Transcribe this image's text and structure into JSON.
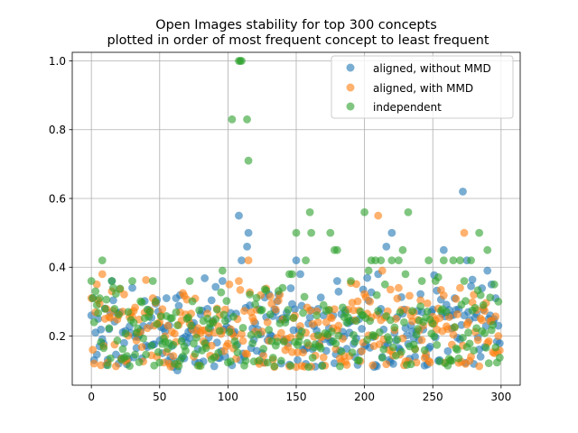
{
  "chart_data": {
    "type": "scatter",
    "title_line1": "Open Images stability for top 300 concepts",
    "title_line2": "plotted in order of most frequent concept to least frequent",
    "xlim": [
      -14,
      314
    ],
    "ylim": [
      0.057,
      1.025
    ],
    "x_ticks": [
      0,
      50,
      100,
      150,
      200,
      250,
      300
    ],
    "y_ticks": [
      0.2,
      0.4,
      0.6,
      0.8,
      1.0
    ],
    "y_tick_labels": [
      "0.2",
      "0.4",
      "0.6",
      "0.8",
      "1.0"
    ],
    "grid": true,
    "legend_position": "upper-right",
    "n_points": 300,
    "series": [
      {
        "name": "aligned, without MMD",
        "color": "#1f77b4",
        "seed": 11,
        "highlights": [
          [
            0,
            0.26
          ],
          [
            1,
            0.31
          ],
          [
            2,
            0.13
          ],
          [
            3,
            0.21
          ],
          [
            5,
            0.25
          ],
          [
            10,
            0.28
          ],
          [
            13,
            0.22
          ],
          [
            15,
            0.36
          ],
          [
            20,
            0.12
          ],
          [
            30,
            0.34
          ],
          [
            55,
            0.31
          ],
          [
            62,
            0.31
          ],
          [
            63,
            0.1
          ],
          [
            96,
            0.36
          ],
          [
            100,
            0.25
          ],
          [
            108,
            0.55
          ],
          [
            110,
            0.42
          ],
          [
            112,
            0.14
          ],
          [
            114,
            0.46
          ],
          [
            115,
            0.5
          ],
          [
            150,
            0.42
          ],
          [
            153,
            0.38
          ],
          [
            180,
            0.36
          ],
          [
            200,
            0.17
          ],
          [
            207,
            0.11
          ],
          [
            210,
            0.38
          ],
          [
            216,
            0.46
          ],
          [
            220,
            0.5
          ],
          [
            226,
            0.16
          ],
          [
            237,
            0.14
          ],
          [
            245,
            0.14
          ],
          [
            255,
            0.13
          ],
          [
            258,
            0.45
          ],
          [
            272,
            0.62
          ],
          [
            275,
            0.42
          ],
          [
            285,
            0.14
          ],
          [
            290,
            0.39
          ],
          [
            293,
            0.35
          ],
          [
            296,
            0.31
          ],
          [
            298,
            0.23
          ]
        ]
      },
      {
        "name": "aligned, with MMD",
        "color": "#ff7f0e",
        "seed": 29,
        "highlights": [
          [
            0,
            0.31
          ],
          [
            1,
            0.16
          ],
          [
            2,
            0.12
          ],
          [
            4,
            0.35
          ],
          [
            8,
            0.38
          ],
          [
            10,
            0.25
          ],
          [
            15,
            0.33
          ],
          [
            45,
            0.31
          ],
          [
            75,
            0.14
          ],
          [
            92,
            0.28
          ],
          [
            108,
            0.36
          ],
          [
            115,
            0.42
          ],
          [
            150,
            0.11
          ],
          [
            210,
            0.55
          ],
          [
            213,
            0.39
          ],
          [
            225,
            0.34
          ],
          [
            270,
            0.34
          ],
          [
            273,
            0.5
          ],
          [
            280,
            0.32
          ],
          [
            290,
            0.18
          ],
          [
            295,
            0.15
          ],
          [
            298,
            0.2
          ]
        ]
      },
      {
        "name": "independent",
        "color": "#2ca02c",
        "seed": 47,
        "highlights": [
          [
            0,
            0.36
          ],
          [
            1,
            0.31
          ],
          [
            3,
            0.33
          ],
          [
            4,
            0.29
          ],
          [
            6,
            0.31
          ],
          [
            8,
            0.42
          ],
          [
            15,
            0.36
          ],
          [
            16,
            0.34
          ],
          [
            30,
            0.36
          ],
          [
            45,
            0.36
          ],
          [
            72,
            0.36
          ],
          [
            96,
            0.39
          ],
          [
            103,
            0.83
          ],
          [
            108,
            1.0
          ],
          [
            109,
            1.0
          ],
          [
            110,
            1.0
          ],
          [
            114,
            0.83
          ],
          [
            115,
            0.71
          ],
          [
            140,
            0.34
          ],
          [
            145,
            0.38
          ],
          [
            147,
            0.38
          ],
          [
            150,
            0.5
          ],
          [
            157,
            0.42
          ],
          [
            160,
            0.56
          ],
          [
            161,
            0.5
          ],
          [
            175,
            0.5
          ],
          [
            178,
            0.45
          ],
          [
            180,
            0.45
          ],
          [
            190,
            0.36
          ],
          [
            200,
            0.56
          ],
          [
            203,
            0.39
          ],
          [
            205,
            0.42
          ],
          [
            208,
            0.42
          ],
          [
            212,
            0.42
          ],
          [
            215,
            0.35
          ],
          [
            220,
            0.42
          ],
          [
            225,
            0.42
          ],
          [
            228,
            0.45
          ],
          [
            230,
            0.38
          ],
          [
            232,
            0.56
          ],
          [
            242,
            0.36
          ],
          [
            247,
            0.42
          ],
          [
            252,
            0.36
          ],
          [
            258,
            0.42
          ],
          [
            265,
            0.42
          ],
          [
            270,
            0.42
          ],
          [
            273,
            0.36
          ],
          [
            278,
            0.42
          ],
          [
            284,
            0.5
          ],
          [
            290,
            0.45
          ],
          [
            295,
            0.35
          ],
          [
            298,
            0.3
          ]
        ]
      }
    ]
  }
}
